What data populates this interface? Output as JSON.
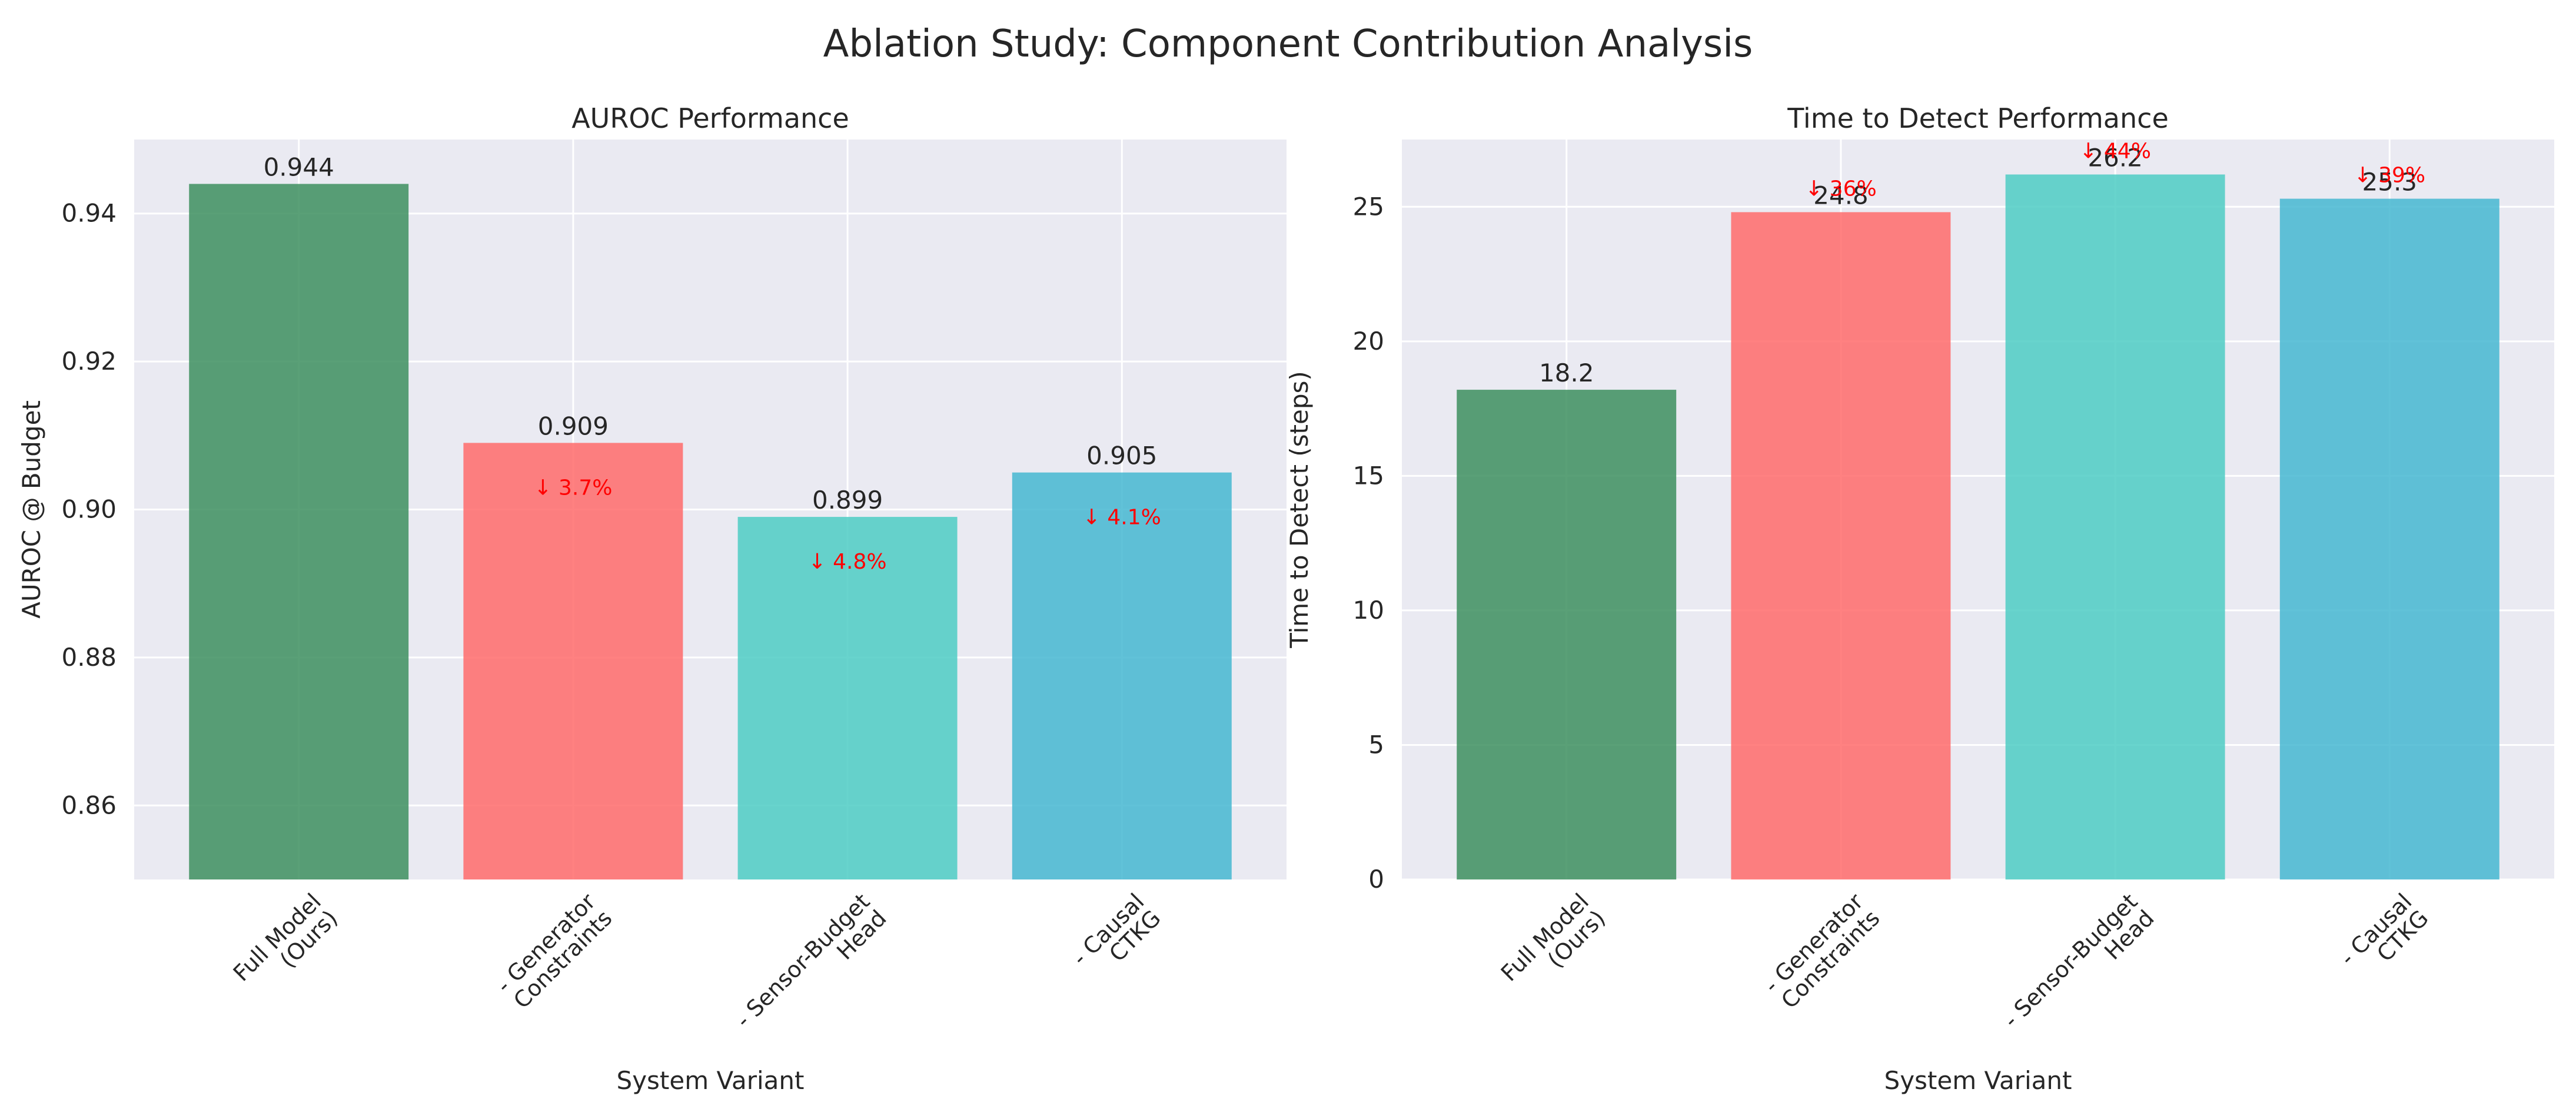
{
  "title": "Ablation Study: Component Contribution Analysis",
  "colors": {
    "bars": [
      "#3d8f5f",
      "#ff6b6b",
      "#4ecdc4",
      "#45b7d1"
    ],
    "delta": "#ff0000",
    "background": "#eaeaf2",
    "grid": "#ffffff"
  },
  "chart_data": [
    {
      "type": "bar",
      "title": "AUROC Performance",
      "xlabel": "System Variant",
      "ylabel": "AUROC @ Budget",
      "categories": [
        [
          "Full Model",
          "(Ours)"
        ],
        [
          "- Generator",
          "Constraints"
        ],
        [
          "- Sensor-Budget",
          "Head"
        ],
        [
          "- Causal",
          "CTKG"
        ]
      ],
      "values": [
        0.944,
        0.909,
        0.899,
        0.905
      ],
      "value_labels": [
        "0.944",
        "0.909",
        "0.899",
        "0.905"
      ],
      "deltas": [
        null,
        "↓ 3.7%",
        "↓ 4.8%",
        "↓ 4.1%"
      ],
      "ylim": [
        0.85,
        0.95
      ],
      "yticks": [
        0.86,
        0.88,
        0.9,
        0.92,
        0.94
      ],
      "ytick_labels": [
        "0.86",
        "0.88",
        "0.90",
        "0.92",
        "0.94"
      ],
      "grid": true
    },
    {
      "type": "bar",
      "title": "Time to Detect Performance",
      "xlabel": "System Variant",
      "ylabel": "Time to Detect (steps)",
      "categories": [
        [
          "Full Model",
          "(Ours)"
        ],
        [
          "- Generator",
          "Constraints"
        ],
        [
          "- Sensor-Budget",
          "Head"
        ],
        [
          "- Causal",
          "CTKG"
        ]
      ],
      "values": [
        18.2,
        24.8,
        26.2,
        25.3
      ],
      "value_labels": [
        "18.2",
        "24.8",
        "26.2",
        "25.3"
      ],
      "deltas": [
        null,
        "↓ 36%",
        "↓ 44%",
        "↓ 39%"
      ],
      "ylim": [
        0,
        27.5
      ],
      "yticks": [
        0,
        5,
        10,
        15,
        20,
        25
      ],
      "ytick_labels": [
        "0",
        "5",
        "10",
        "15",
        "20",
        "25"
      ],
      "grid": true
    }
  ]
}
